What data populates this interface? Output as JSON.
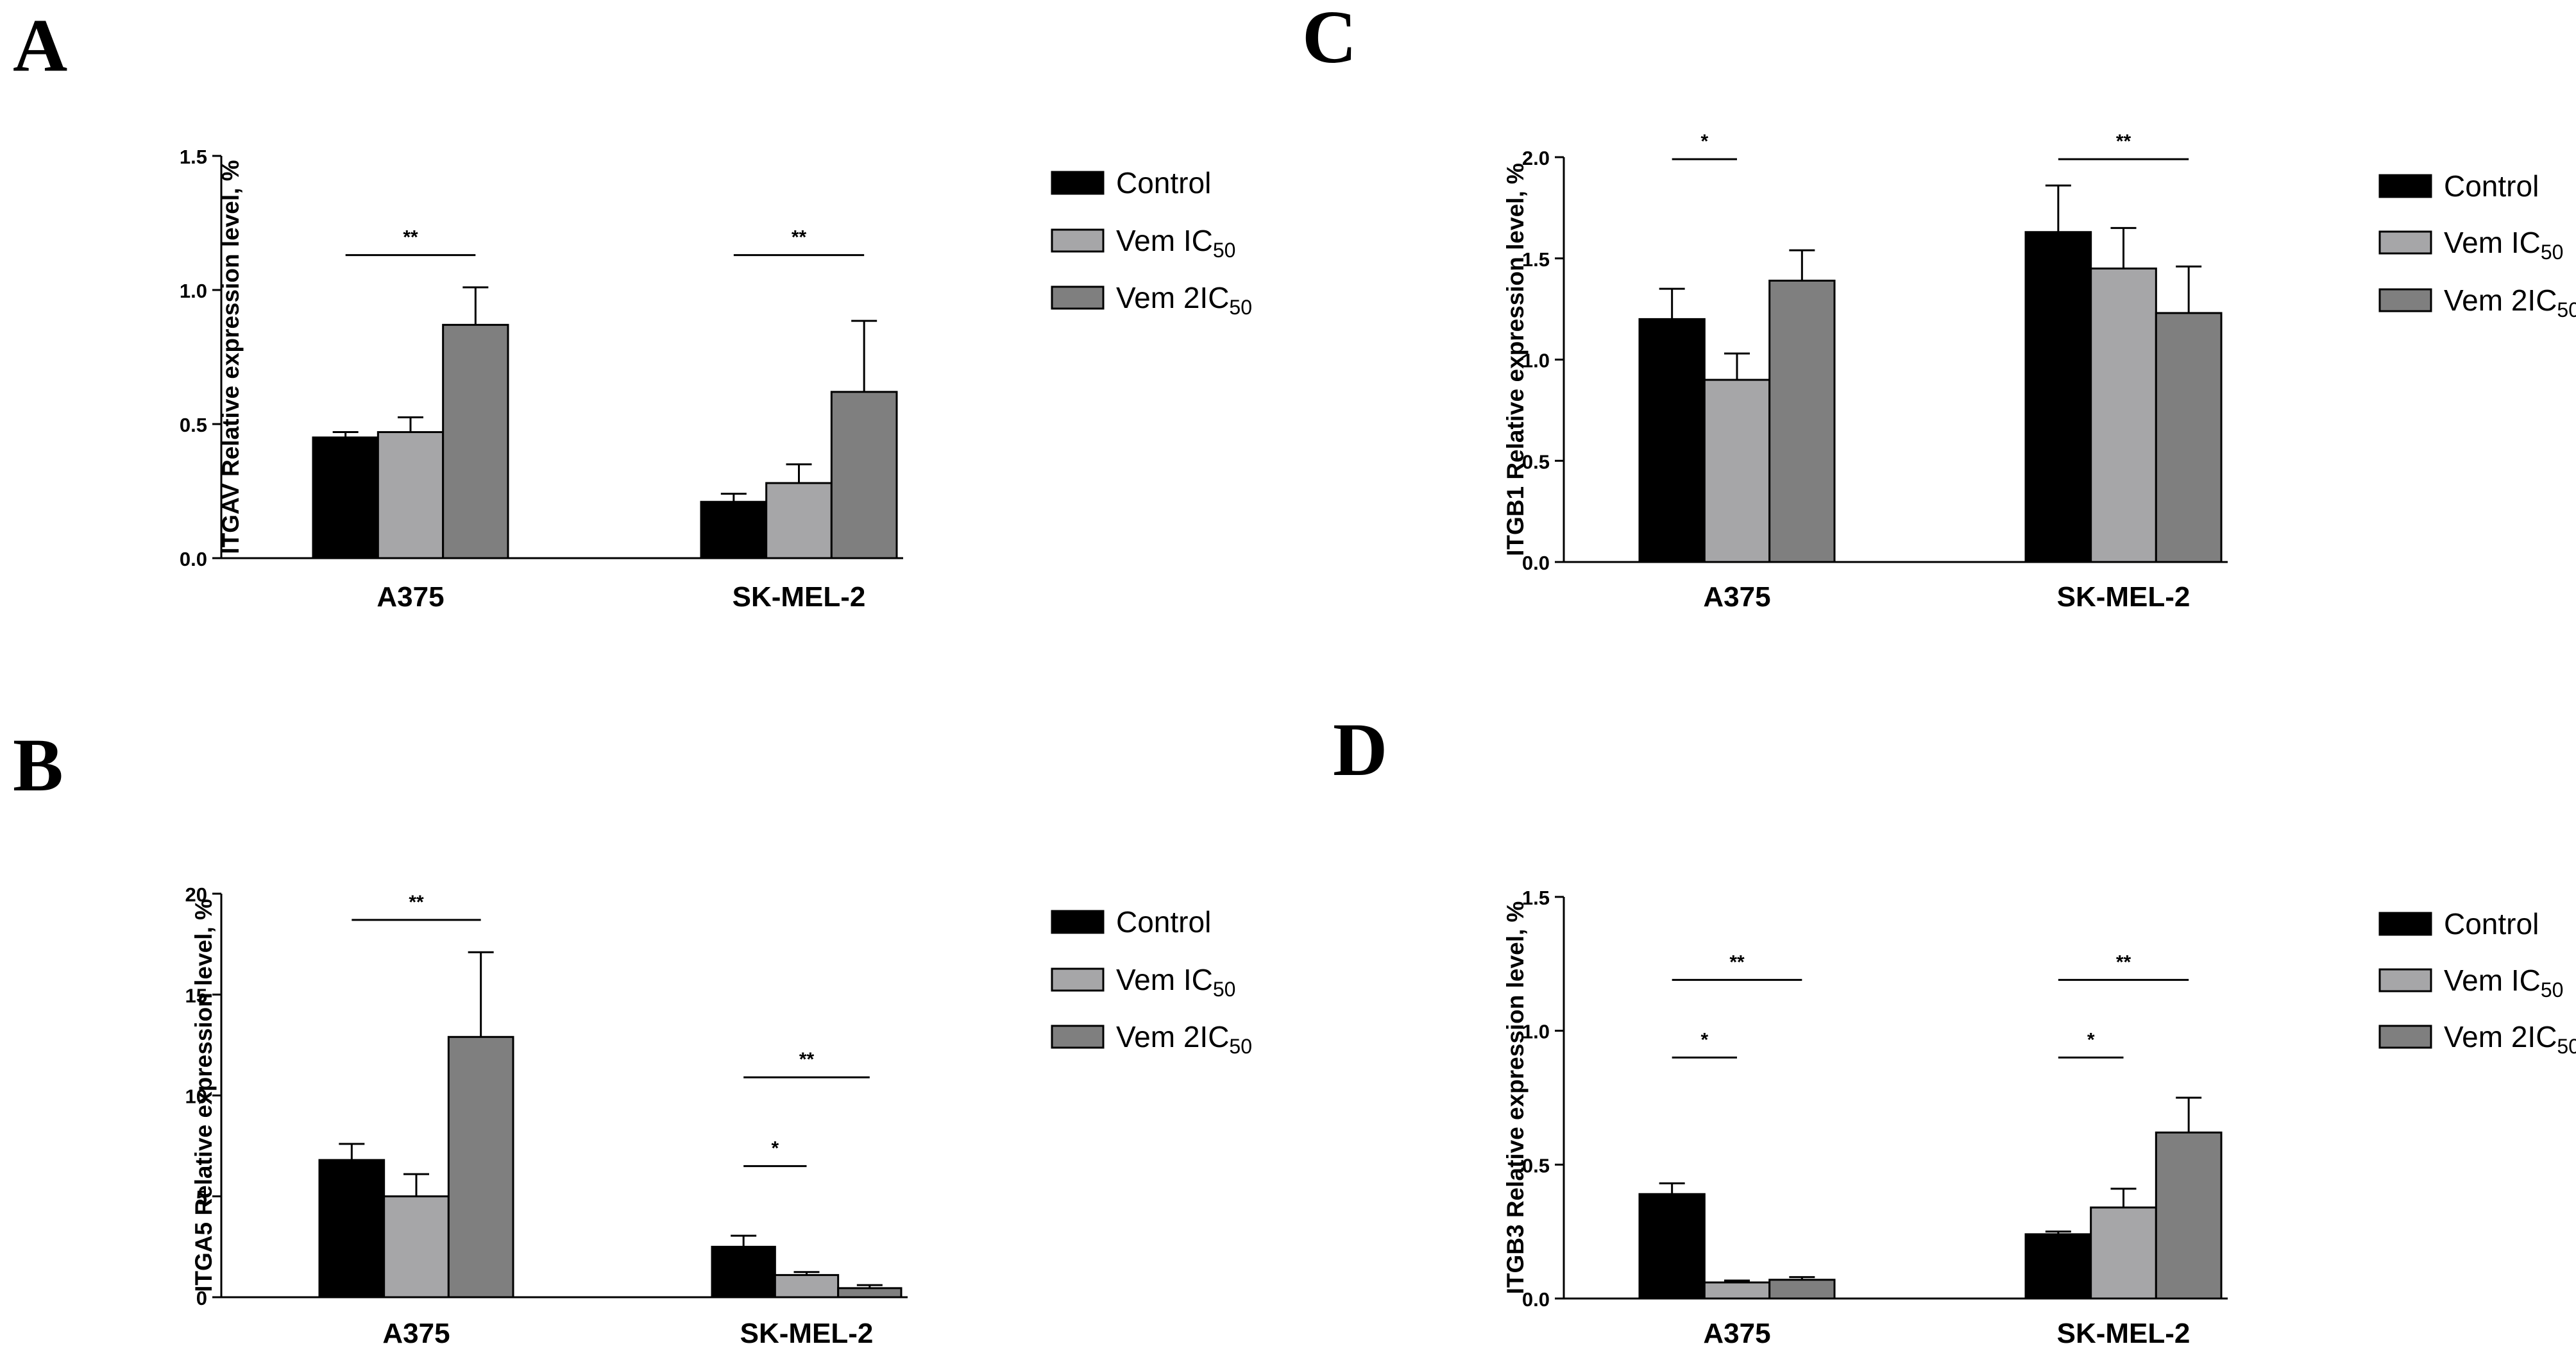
{
  "legend": {
    "entries": [
      {
        "name": "Control",
        "color": "#000000"
      },
      {
        "name": "Vem IC",
        "sub": "50",
        "color": "#a6a6a8"
      },
      {
        "name": "Vem 2IC",
        "sub": "50",
        "color": "#7f7f7f"
      }
    ]
  },
  "chart_data": [
    {
      "panel": "A",
      "type": "bar",
      "ylabel": "ITGAV Relative expression level, %",
      "ylim": [
        0,
        1.5
      ],
      "yticks": [
        "0.0",
        "0.5",
        "1.0",
        "1.5"
      ],
      "categories": [
        "A375",
        "SK-MEL-2"
      ],
      "series": [
        {
          "name": "Control",
          "values": [
            0.45,
            0.21
          ],
          "errors": [
            0.02,
            0.03
          ]
        },
        {
          "name": "Vem IC50",
          "values": [
            0.47,
            0.28
          ],
          "errors": [
            0.055,
            0.07
          ]
        },
        {
          "name": "Vem 2IC50",
          "values": [
            0.87,
            0.62
          ],
          "errors": [
            0.14,
            0.265
          ]
        }
      ],
      "significance": [
        {
          "category": 0,
          "from": 0,
          "to": 2,
          "y": 1.13,
          "label": "**"
        },
        {
          "category": 1,
          "from": 0,
          "to": 2,
          "y": 1.13,
          "label": "**"
        }
      ]
    },
    {
      "panel": "B",
      "type": "bar",
      "ylabel": "ITGA5 Relative expression level, %",
      "ylim": [
        0,
        20
      ],
      "yticks": [
        "0",
        "5",
        "10",
        "15",
        "20"
      ],
      "categories": [
        "A375",
        "SK-MEL-2"
      ],
      "series": [
        {
          "name": "Control",
          "values": [
            6.8,
            2.5
          ],
          "errors": [
            0.8,
            0.55
          ]
        },
        {
          "name": "Vem IC50",
          "values": [
            5.0,
            1.1
          ],
          "errors": [
            1.1,
            0.15
          ]
        },
        {
          "name": "Vem 2IC50",
          "values": [
            12.9,
            0.45
          ],
          "errors": [
            4.2,
            0.15
          ]
        }
      ],
      "significance": [
        {
          "category": 0,
          "from": 0,
          "to": 2,
          "y": 18.7,
          "label": "**"
        },
        {
          "category": 1,
          "from": 0,
          "to": 2,
          "y": 10.9,
          "label": "**"
        },
        {
          "category": 1,
          "from": 0,
          "to": 1,
          "y": 6.5,
          "label": "*"
        }
      ]
    },
    {
      "panel": "C",
      "type": "bar",
      "ylabel": "ITGB1 Relative expression level, %",
      "ylim": [
        0,
        2.0
      ],
      "yticks": [
        "0.0",
        "0.5",
        "1.0",
        "1.5",
        "2.0"
      ],
      "categories": [
        "A375",
        "SK-MEL-2"
      ],
      "series": [
        {
          "name": "Control",
          "values": [
            1.2,
            1.63
          ],
          "errors": [
            0.15,
            0.23
          ]
        },
        {
          "name": "Vem IC50",
          "values": [
            0.9,
            1.45
          ],
          "errors": [
            0.13,
            0.2
          ]
        },
        {
          "name": "Vem 2IC50",
          "values": [
            1.39,
            1.23
          ],
          "errors": [
            0.15,
            0.23
          ]
        }
      ],
      "significance": [
        {
          "category": 0,
          "from": 0,
          "to": 1,
          "y": 1.99,
          "label": "*"
        },
        {
          "category": 1,
          "from": 0,
          "to": 2,
          "y": 1.99,
          "label": "**"
        }
      ]
    },
    {
      "panel": "D",
      "type": "bar",
      "ylabel": "ITGB3 Relative expression level, %",
      "ylim": [
        0,
        1.5
      ],
      "yticks": [
        "0.0",
        "0.5",
        "1.0",
        "1.5"
      ],
      "categories": [
        "A375",
        "SK-MEL-2"
      ],
      "series": [
        {
          "name": "Control",
          "values": [
            0.39,
            0.24
          ],
          "errors": [
            0.04,
            0.01
          ]
        },
        {
          "name": "Vem IC50",
          "values": [
            0.06,
            0.34
          ],
          "errors": [
            0.007,
            0.07
          ]
        },
        {
          "name": "Vem 2IC50",
          "values": [
            0.07,
            0.62
          ],
          "errors": [
            0.01,
            0.13
          ]
        }
      ],
      "significance": [
        {
          "category": 0,
          "from": 0,
          "to": 2,
          "y": 1.19,
          "label": "**"
        },
        {
          "category": 0,
          "from": 0,
          "to": 1,
          "y": 0.9,
          "label": "*"
        },
        {
          "category": 1,
          "from": 0,
          "to": 2,
          "y": 1.19,
          "label": "**"
        },
        {
          "category": 1,
          "from": 0,
          "to": 1,
          "y": 0.9,
          "label": "*"
        }
      ]
    }
  ]
}
